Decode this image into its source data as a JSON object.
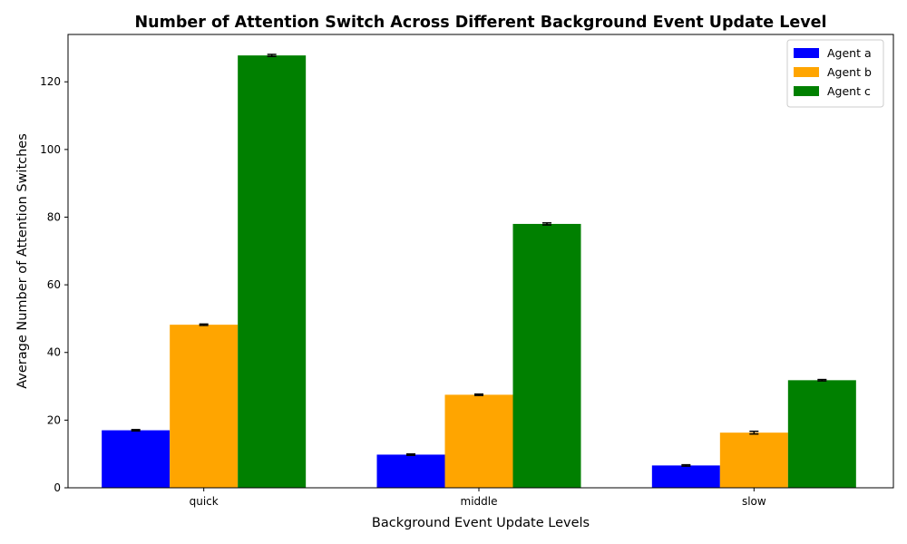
{
  "chart_data": {
    "type": "bar",
    "title": "Number of Attention Switch Across Different Background Event Update Level",
    "xlabel": "Background Event Update Levels",
    "ylabel": "Average Number of Attention Switches",
    "categories": [
      "quick",
      "middle",
      "slow"
    ],
    "series": [
      {
        "name": "Agent a",
        "color": "#0000ff",
        "values": [
          17.0,
          9.8,
          6.6
        ],
        "errors": [
          0.2,
          0.2,
          0.2
        ]
      },
      {
        "name": "Agent b",
        "color": "#ffa500",
        "values": [
          48.2,
          27.5,
          16.3
        ],
        "errors": [
          0.2,
          0.2,
          0.4
        ]
      },
      {
        "name": "Agent c",
        "color": "#008000",
        "values": [
          127.8,
          78.0,
          31.8
        ],
        "errors": [
          0.3,
          0.3,
          0.2
        ]
      }
    ],
    "ylim": [
      0,
      134
    ],
    "yticks": [
      0,
      20,
      40,
      60,
      80,
      100,
      120
    ],
    "grid": false,
    "legend_position": "top-right"
  }
}
